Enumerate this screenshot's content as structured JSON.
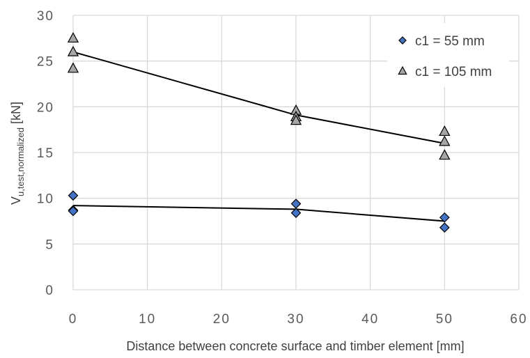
{
  "chart_data": {
    "type": "scatter",
    "xlabel": "Distance between concrete surface and timber element [mm]",
    "ylabel": {
      "main": "V",
      "subscript": "u,test,normalized",
      "unit": " [kN]"
    },
    "xlim": [
      0,
      60
    ],
    "ylim": [
      0,
      30
    ],
    "x_ticks": [
      0,
      10,
      20,
      30,
      40,
      50,
      60
    ],
    "y_ticks": [
      0,
      5,
      10,
      15,
      20,
      25,
      30
    ],
    "x_tick_labels": [
      "0",
      "10",
      "20",
      "30",
      "40",
      "50",
      "60"
    ],
    "y_tick_labels": [
      "0",
      "5",
      "10",
      "15",
      "20",
      "25",
      "30"
    ],
    "grid": true,
    "legend_position": "top-right",
    "series": [
      {
        "name": "c1 = 55 mm",
        "marker": "diamond",
        "color": "#4472C4",
        "points": [
          {
            "x": 0,
            "y": 10.3
          },
          {
            "x": 0,
            "y": 8.7
          },
          {
            "x": 0,
            "y": 8.6
          },
          {
            "x": 30,
            "y": 9.4
          },
          {
            "x": 30,
            "y": 8.4
          },
          {
            "x": 50,
            "y": 7.9
          },
          {
            "x": 50,
            "y": 6.8
          }
        ],
        "trend": [
          {
            "x": 0,
            "y": 9.2
          },
          {
            "x": 30,
            "y": 8.8
          },
          {
            "x": 50,
            "y": 7.5
          }
        ]
      },
      {
        "name": "c1 = 105 mm",
        "marker": "triangle",
        "color": "#A6A6A6",
        "points": [
          {
            "x": 0,
            "y": 27.5
          },
          {
            "x": 0,
            "y": 26.0
          },
          {
            "x": 0,
            "y": 24.2
          },
          {
            "x": 30,
            "y": 19.6
          },
          {
            "x": 30,
            "y": 18.9
          },
          {
            "x": 30,
            "y": 18.5
          },
          {
            "x": 50,
            "y": 17.3
          },
          {
            "x": 50,
            "y": 16.2
          },
          {
            "x": 50,
            "y": 14.7
          }
        ],
        "trend": [
          {
            "x": 0,
            "y": 26.0
          },
          {
            "x": 30,
            "y": 19.1
          },
          {
            "x": 50,
            "y": 16.0
          }
        ]
      }
    ],
    "colors": {
      "grid": "#D9D9D9",
      "trend_line": "#000000",
      "marker_stroke": "#000000"
    }
  }
}
